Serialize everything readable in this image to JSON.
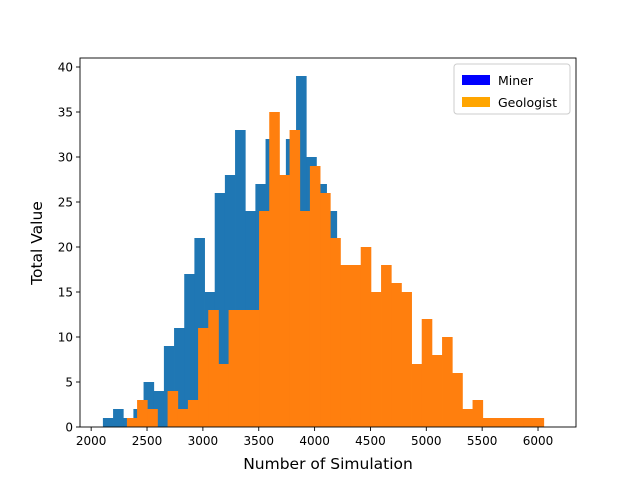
{
  "chart_data": {
    "type": "bar",
    "subtype": "histogram-overlay",
    "title": "",
    "xlabel": "Number of Simulation",
    "ylabel": "Total Value",
    "xlim": [
      1900,
      6340
    ],
    "ylim": [
      0,
      41
    ],
    "xticks": [
      2000,
      2500,
      3000,
      3500,
      4000,
      4500,
      5000,
      5500,
      6000
    ],
    "yticks": [
      0,
      5,
      10,
      15,
      20,
      25,
      30,
      35,
      40
    ],
    "grid": false,
    "legend": {
      "placement": "top-right",
      "entries": [
        {
          "label": "Miner",
          "color": "#0000ff"
        },
        {
          "label": "Geologist",
          "color": "#ffa500"
        }
      ]
    },
    "series": [
      {
        "name": "Miner",
        "color": "#1f77b4",
        "bin_start": 2105,
        "bin_width": 91,
        "values": [
          1,
          2,
          1,
          2,
          5,
          4,
          9,
          11,
          17,
          21,
          15,
          26,
          28,
          33,
          24,
          27,
          32,
          23,
          32,
          39,
          30,
          27,
          24,
          13,
          1,
          1
        ]
      },
      {
        "name": "Geologist",
        "color": "#ff7f0e",
        "bin_start": 2320,
        "bin_width": 91,
        "values": [
          1,
          3,
          2,
          0,
          4,
          2,
          3,
          11,
          13,
          7,
          13,
          13,
          13,
          24,
          35,
          28,
          33,
          24,
          29,
          26,
          21,
          18,
          18,
          20,
          15,
          18,
          16,
          15,
          7,
          12,
          8,
          10,
          6,
          2,
          3,
          1,
          1,
          1,
          1,
          1,
          1
        ]
      }
    ]
  }
}
